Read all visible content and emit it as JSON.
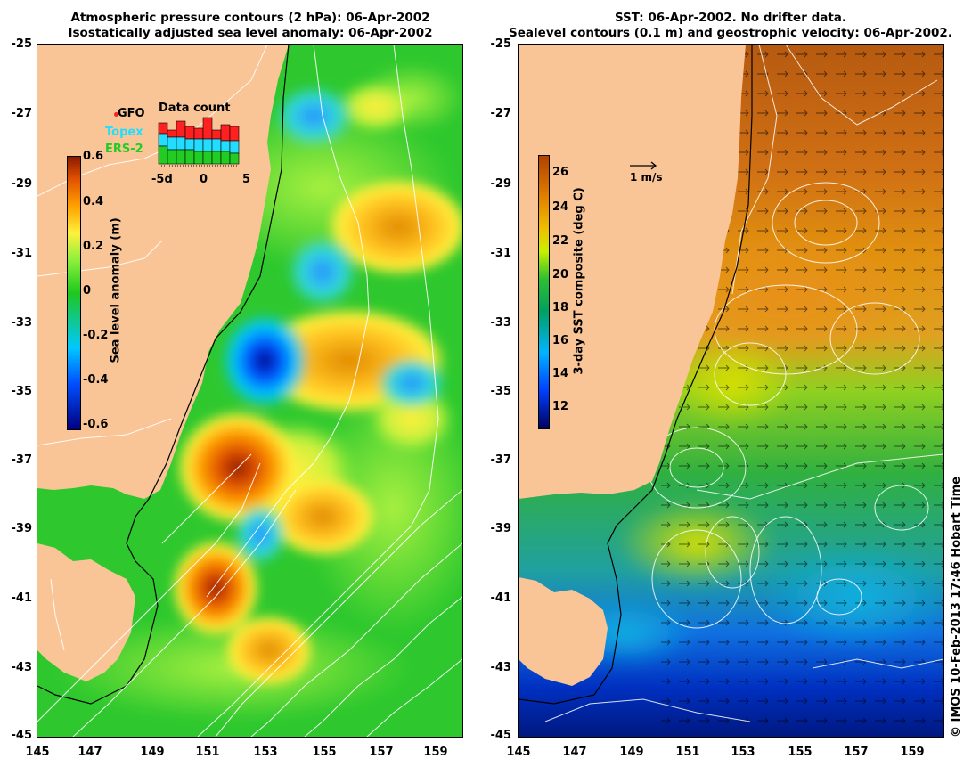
{
  "left_panel": {
    "title_line1": "Atmospheric pressure contours (2 hPa): 06-Apr-2002",
    "title_line2": "Isostatically adjusted sea level anomaly: 06-Apr-2002",
    "y_ticks": [
      "-25",
      "-27",
      "-29",
      "-31",
      "-33",
      "-35",
      "-37",
      "-39",
      "-41",
      "-43",
      "-45"
    ],
    "x_ticks": [
      "145",
      "147",
      "149",
      "151",
      "153",
      "155",
      "157",
      "159"
    ],
    "colorbar": {
      "label": "Sea level anomaly (m)",
      "ticks": [
        "0.6",
        "0.4",
        "0.2",
        "0",
        "-0.2",
        "-0.4",
        "-0.6"
      ]
    },
    "inset": {
      "title": "Data count",
      "x_ticks": [
        "-5d",
        "0",
        "5"
      ],
      "legend": [
        {
          "label": "GFO",
          "color": "#ff2020"
        },
        {
          "label": "Topex",
          "color": "#22ddff"
        },
        {
          "label": "ERS-2",
          "color": "#22cc22"
        }
      ]
    }
  },
  "right_panel": {
    "title_line1": "SST: 06-Apr-2002. No drifter data.",
    "title_line2": "Sealevel contours (0.1 m) and geostrophic velocity: 06-Apr-2002.",
    "y_ticks": [
      "-25",
      "-27",
      "-29",
      "-31",
      "-33",
      "-35",
      "-37",
      "-39",
      "-41",
      "-43",
      "-45"
    ],
    "x_ticks": [
      "145",
      "147",
      "149",
      "151",
      "153",
      "155",
      "157",
      "159"
    ],
    "colorbar": {
      "label": "3-day SST composite (deg C)",
      "ticks": [
        "26",
        "24",
        "22",
        "20",
        "18",
        "16",
        "14",
        "12"
      ]
    },
    "scale_arrow_label": "1 m/s"
  },
  "credit": "© IMOS 10-Feb-2013 17:46 Hobart Time",
  "colors": {
    "land": "#f9c596",
    "sla_ramp": [
      "#000080",
      "#0050ff",
      "#00c8ff",
      "#1ec81e",
      "#8cf03c",
      "#fff03c",
      "#ffa000",
      "#e05000",
      "#8b1a00"
    ],
    "sst_ramp": [
      "#000060",
      "#0040ff",
      "#00b4ff",
      "#00a060",
      "#30c030",
      "#c8f000",
      "#f0c000",
      "#e08000",
      "#b04000"
    ]
  }
}
